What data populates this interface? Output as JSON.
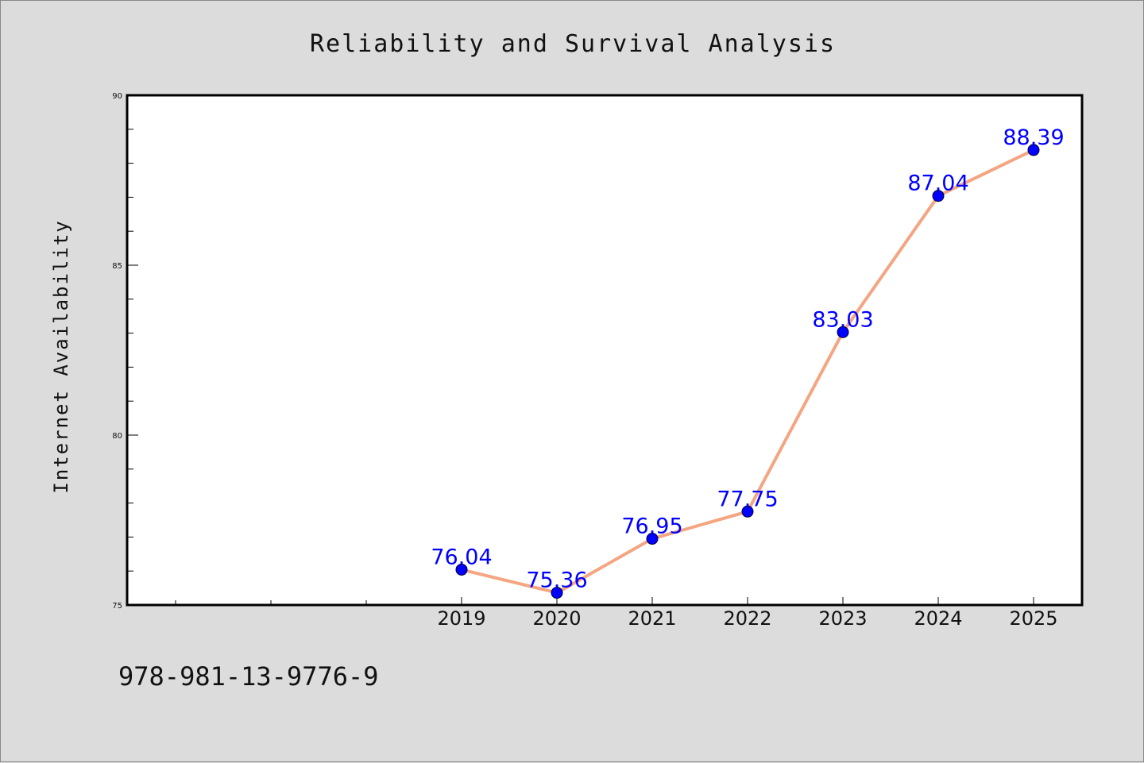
{
  "chart_data": {
    "type": "line",
    "title": "Reliability and Survival Analysis",
    "xlabel": "",
    "ylabel": "Internet Availability",
    "categories": [
      "2019",
      "2020",
      "2021",
      "2022",
      "2023",
      "2024",
      "2025"
    ],
    "series": [
      {
        "values": [
          76.04,
          75.36,
          76.95,
          77.75,
          83.03,
          87.04,
          88.39
        ]
      }
    ],
    "data_labels": [
      "76.04",
      "75.36",
      "76.95",
      "77.75",
      "83.03",
      "87.04",
      "88.39"
    ],
    "ylim": [
      75,
      90
    ],
    "y_ticks": [
      "75",
      "80",
      "85",
      "90"
    ],
    "grid": false,
    "legend": "none",
    "colors": {
      "line": "#f4a582",
      "marker": "#0000ff",
      "label": "#0000ff"
    }
  },
  "footer_text": "978-981-13-9776-9"
}
